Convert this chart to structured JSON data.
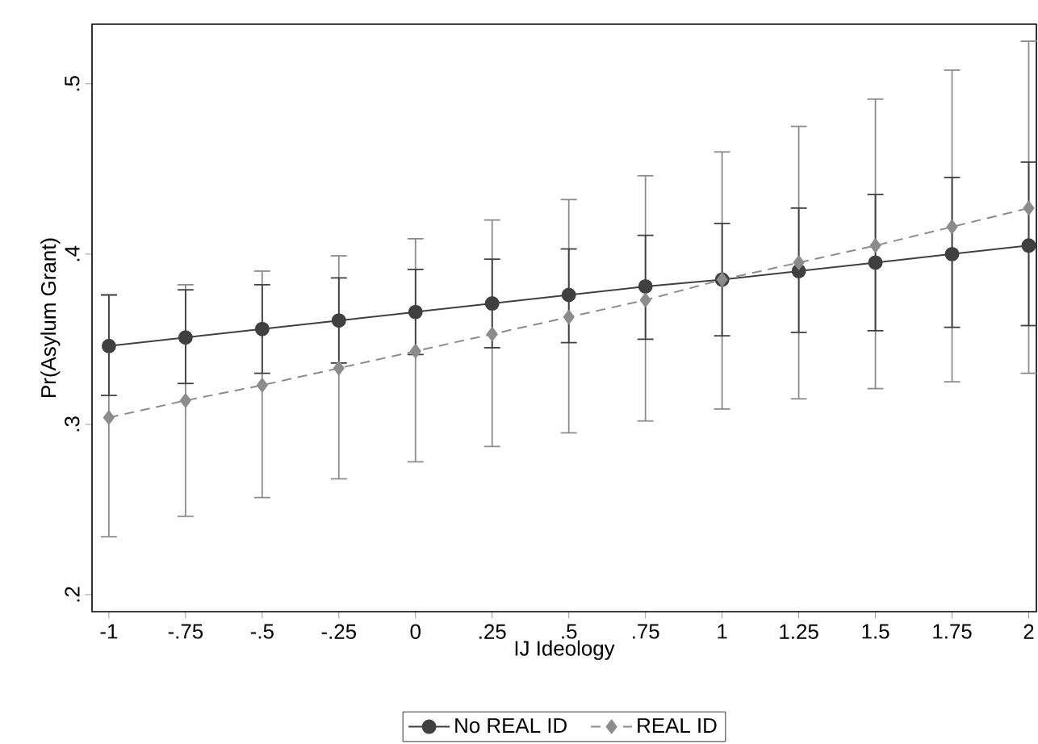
{
  "chart_data": {
    "type": "line",
    "xlabel": "IJ Ideology",
    "ylabel": "Pr(Asylum Grant)",
    "x": [
      -1,
      -0.75,
      -0.5,
      -0.25,
      0,
      0.25,
      0.5,
      0.75,
      1,
      1.25,
      1.5,
      1.75,
      2
    ],
    "series": [
      {
        "name": "No REAL ID",
        "color": "#404040",
        "marker": "circle",
        "line_style": "solid",
        "values": [
          0.346,
          0.351,
          0.356,
          0.361,
          0.366,
          0.371,
          0.376,
          0.381,
          0.385,
          0.39,
          0.395,
          0.4,
          0.405
        ],
        "errors": [
          [
            0.317,
            0.376
          ],
          [
            0.324,
            0.379
          ],
          [
            0.33,
            0.382
          ],
          [
            0.336,
            0.386
          ],
          [
            0.341,
            0.391
          ],
          [
            0.345,
            0.397
          ],
          [
            0.348,
            0.403
          ],
          [
            0.35,
            0.411
          ],
          [
            0.352,
            0.418
          ],
          [
            0.354,
            0.427
          ],
          [
            0.355,
            0.435
          ],
          [
            0.357,
            0.445
          ],
          [
            0.358,
            0.454
          ]
        ]
      },
      {
        "name": "REAL ID",
        "color": "#8c8c8c",
        "marker": "diamond",
        "line_style": "dashed",
        "values": [
          0.304,
          0.314,
          0.323,
          0.333,
          0.343,
          0.353,
          0.363,
          0.373,
          0.385,
          0.395,
          0.405,
          0.416,
          0.427
        ],
        "errors": [
          [
            0.234,
            0.376
          ],
          [
            0.246,
            0.382
          ],
          [
            0.257,
            0.39
          ],
          [
            0.268,
            0.399
          ],
          [
            0.278,
            0.409
          ],
          [
            0.287,
            0.42
          ],
          [
            0.295,
            0.432
          ],
          [
            0.302,
            0.446
          ],
          [
            0.309,
            0.46
          ],
          [
            0.315,
            0.475
          ],
          [
            0.321,
            0.491
          ],
          [
            0.325,
            0.508
          ],
          [
            0.33,
            0.525
          ]
        ]
      }
    ],
    "xlim": [
      -1.055,
      2.025
    ],
    "ylim": [
      0.19,
      0.535
    ],
    "xticks": [
      -1,
      {
        "value": -0.75,
        "label": "-.75"
      },
      {
        "value": -0.5,
        "label": "-.5"
      },
      {
        "value": -0.25,
        "label": "-.25"
      },
      0,
      {
        "value": 0.25,
        "label": ".25"
      },
      {
        "value": 0.5,
        "label": ".5"
      },
      {
        "value": 0.75,
        "label": ".75"
      },
      1,
      1.25,
      1.5,
      1.75,
      2
    ],
    "yticks": [
      {
        "value": 0.2,
        "label": ".2"
      },
      {
        "value": 0.3,
        "label": ".3"
      },
      {
        "value": 0.4,
        "label": ".4"
      },
      {
        "value": 0.5,
        "label": ".5"
      }
    ],
    "grid": false,
    "legend": "bottom"
  }
}
